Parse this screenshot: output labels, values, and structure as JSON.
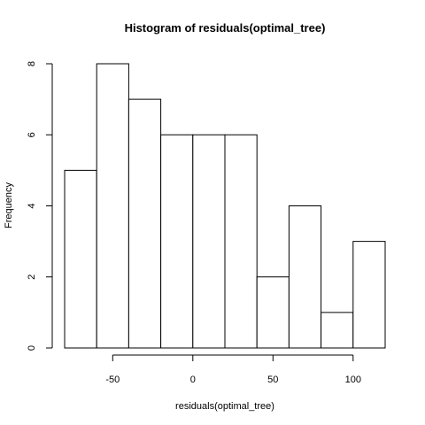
{
  "chart_data": {
    "type": "bar",
    "title": "Histogram of residuals(optimal_tree)",
    "xlabel": "residuals(optimal_tree)",
    "ylabel": "Frequency",
    "bins": [
      {
        "start": -80,
        "end": -60,
        "value": 5
      },
      {
        "start": -60,
        "end": -40,
        "value": 8
      },
      {
        "start": -40,
        "end": -20,
        "value": 7
      },
      {
        "start": -20,
        "end": 0,
        "value": 6
      },
      {
        "start": 0,
        "end": 20,
        "value": 6
      },
      {
        "start": 20,
        "end": 40,
        "value": 6
      },
      {
        "start": 40,
        "end": 60,
        "value": 2
      },
      {
        "start": 60,
        "end": 80,
        "value": 4
      },
      {
        "start": 80,
        "end": 100,
        "value": 1
      },
      {
        "start": 100,
        "end": 120,
        "value": 3
      }
    ],
    "xlim": [
      -80,
      120
    ],
    "ylim": [
      0,
      8
    ],
    "x_ticks": [
      -50,
      0,
      50,
      100
    ],
    "y_ticks": [
      0,
      2,
      4,
      6,
      8
    ],
    "grid": false,
    "colors": {
      "fill": "#ffffff",
      "stroke": "#000000"
    }
  }
}
